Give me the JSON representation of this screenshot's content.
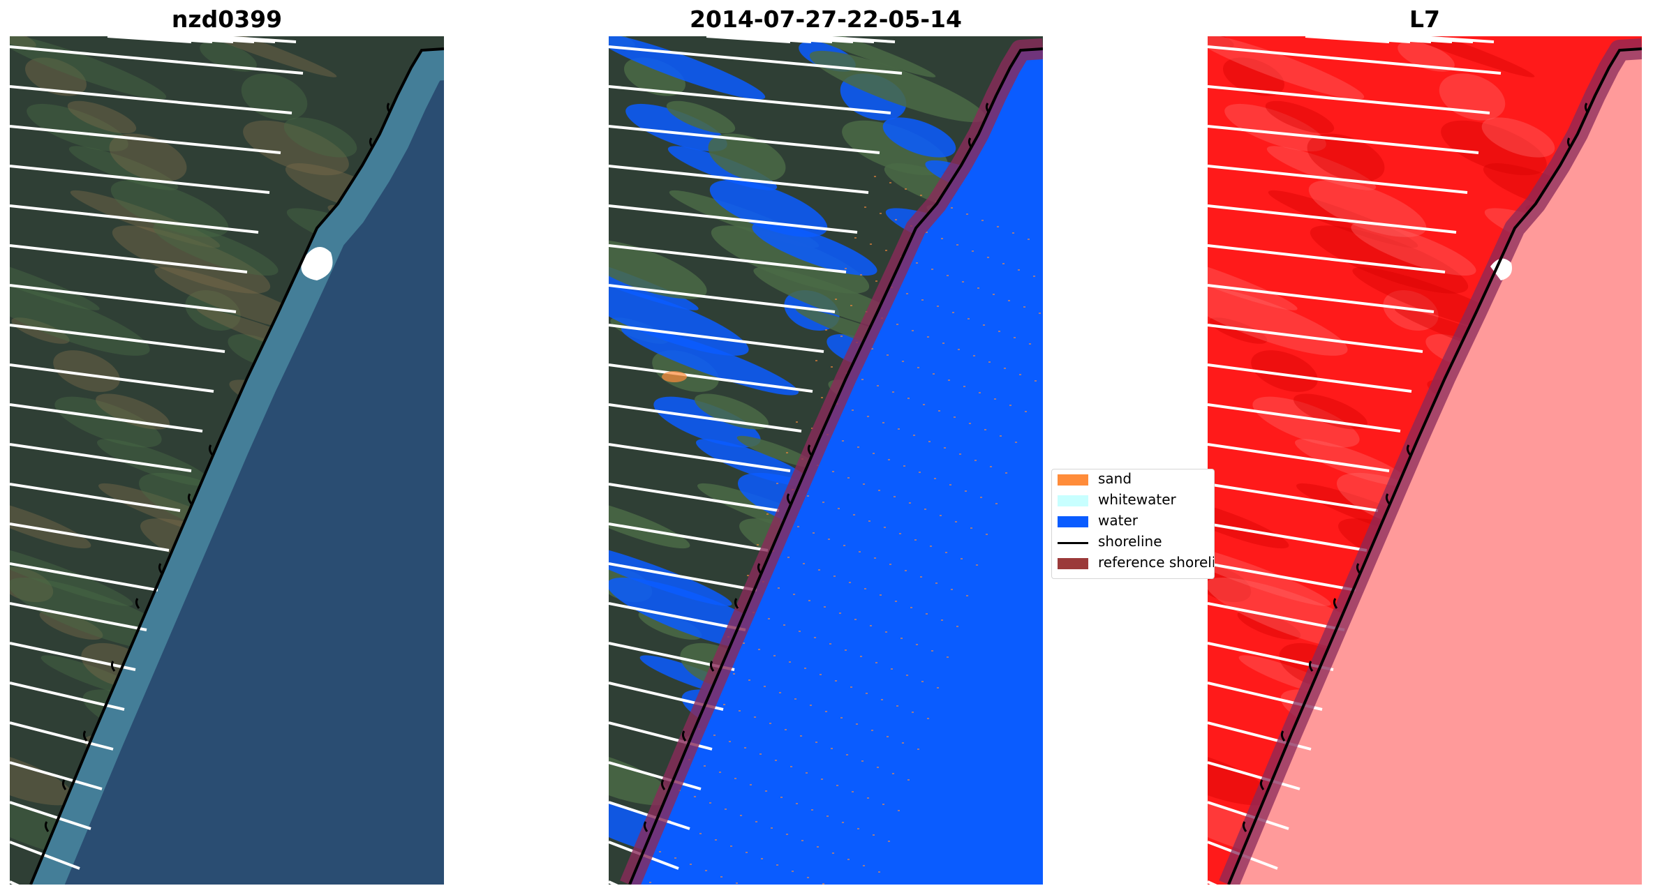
{
  "panels": [
    {
      "title": "nzd0399",
      "mode": "rgb"
    },
    {
      "title": "2014-07-27-22-05-14",
      "mode": "classified"
    },
    {
      "title": "L7",
      "mode": "mndwi"
    }
  ],
  "legend": {
    "items": [
      {
        "label": "sand",
        "color": "#ff8c3a",
        "kind": "patch"
      },
      {
        "label": "whitewater",
        "color": "#c8ffff",
        "kind": "patch"
      },
      {
        "label": "water",
        "color": "#0a5cff",
        "kind": "patch"
      },
      {
        "label": "shoreline",
        "color": "#000000",
        "kind": "line"
      },
      {
        "label": "reference shoreline buffer",
        "color": "#9b3a3a",
        "kind": "patch"
      }
    ]
  },
  "colors": {
    "land_dark": "#2f3f35",
    "land_green": "#4a6a45",
    "land_brown": "#7a6a4a",
    "sea": "#2a4d72",
    "surf": "#5aa7b8",
    "class_water": "#0a5cff",
    "index_land": "#ff1a1a",
    "index_sea": "#ff9a9a",
    "buffer": "#8a2a5a"
  }
}
